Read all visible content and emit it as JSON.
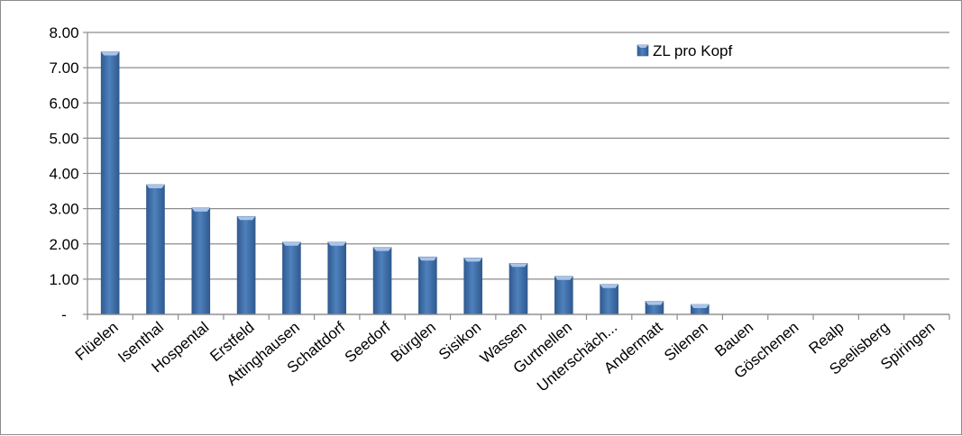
{
  "chart_data": {
    "type": "bar",
    "categories": [
      "Flüelen",
      "Isenthal",
      "Hospental",
      "Erstfeld",
      "Attinghausen",
      "Schattdorf",
      "Seedorf",
      "Bürglen",
      "Sisikon",
      "Wassen",
      "Gurtnellen",
      "Unterschäch...",
      "Andermatt",
      "Silenen",
      "Bauen",
      "Göschenen",
      "Realp",
      "Seelisberg",
      "Spiringen"
    ],
    "series": [
      {
        "name": "ZL pro Kopf",
        "values": [
          7.45,
          3.68,
          3.02,
          2.78,
          2.05,
          2.05,
          1.9,
          1.63,
          1.6,
          1.45,
          1.08,
          0.85,
          0.37,
          0.28,
          0,
          0,
          0,
          0,
          0
        ]
      }
    ],
    "y_tick_labels": [
      "-",
      "1.00",
      "2.00",
      "3.00",
      "4.00",
      "5.00",
      "6.00",
      "7.00",
      "8.00"
    ],
    "ylim": [
      0,
      8
    ],
    "grid": true,
    "legend_position": "top-right",
    "colors": {
      "bar": "#4f81bd",
      "bar_dark": "#2f5a8f",
      "bar_light": "#a9c4e8",
      "grid": "#8c8c8c"
    },
    "legend_icon": "bar-swatch-icon"
  }
}
